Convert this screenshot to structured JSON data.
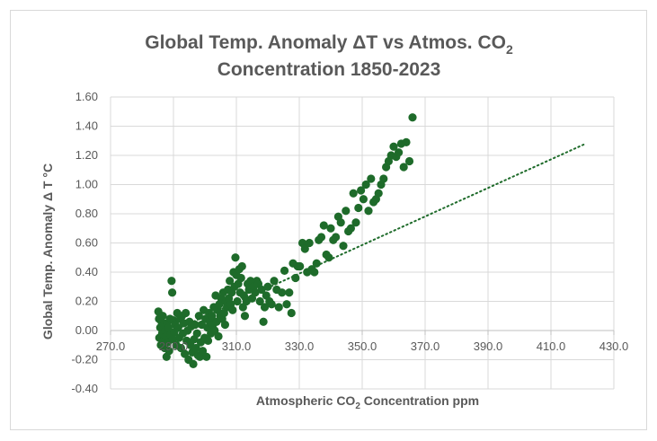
{
  "chart_data": {
    "type": "scatter",
    "title_line1": "Global Temp. Anomaly ΔT vs Atmos. CO",
    "title_line1_sub": "2",
    "title_line2": "Concentration 1850-2023",
    "xlabel_pre": "Atmospheric CO",
    "xlabel_sub": "2",
    "xlabel_post": " Concentration ppm",
    "ylabel": "Global Temp. Anomaly Δ T °C",
    "xlim": [
      270,
      430
    ],
    "ylim": [
      -0.4,
      1.6
    ],
    "x_ticks": [
      "270.0",
      "290.0",
      "310.0",
      "330.0",
      "350.0",
      "370.0",
      "390.0",
      "410.0",
      "430.0"
    ],
    "y_ticks": [
      "1.60",
      "1.40",
      "1.20",
      "1.00",
      "0.80",
      "0.60",
      "0.40",
      "0.20",
      "0.00",
      "-0.20",
      "-0.40"
    ],
    "grid": true,
    "marker_color": "#1e6b2a",
    "trendline": {
      "style": "dotted",
      "color": "#1e6b2a",
      "x": [
        286,
        421
      ],
      "y": [
        -0.04,
        1.28
      ]
    },
    "points": [
      [
        285.2,
        0.13
      ],
      [
        285.4,
        0.08
      ],
      [
        285.5,
        -0.05
      ],
      [
        285.8,
        0.02
      ],
      [
        286.0,
        -0.1
      ],
      [
        286.2,
        0.06
      ],
      [
        286.4,
        -0.02
      ],
      [
        286.6,
        0.1
      ],
      [
        286.8,
        -0.07
      ],
      [
        287.0,
        0.04
      ],
      [
        287.2,
        -0.12
      ],
      [
        287.4,
        0.0
      ],
      [
        287.6,
        -0.04
      ],
      [
        287.8,
        -0.18
      ],
      [
        288.0,
        0.05
      ],
      [
        288.2,
        -0.08
      ],
      [
        288.4,
        0.02
      ],
      [
        288.6,
        -0.14
      ],
      [
        288.9,
        0.08
      ],
      [
        289.1,
        -0.03
      ],
      [
        289.4,
        0.34
      ],
      [
        289.6,
        0.26
      ],
      [
        289.8,
        -0.06
      ],
      [
        290.0,
        0.07
      ],
      [
        290.3,
        -0.01
      ],
      [
        290.6,
        0.04
      ],
      [
        290.9,
        -0.1
      ],
      [
        291.2,
        0.12
      ],
      [
        291.5,
        0.02
      ],
      [
        291.8,
        -0.05
      ],
      [
        292.1,
        0.08
      ],
      [
        292.4,
        -0.12
      ],
      [
        292.7,
        0.1
      ],
      [
        293.0,
        -0.02
      ],
      [
        293.3,
        0.05
      ],
      [
        293.6,
        -0.16
      ],
      [
        293.9,
        0.12
      ],
      [
        294.2,
        -0.07
      ],
      [
        294.5,
        0.0
      ],
      [
        294.8,
        -0.2
      ],
      [
        295.1,
        0.06
      ],
      [
        295.4,
        -0.1
      ],
      [
        295.7,
        0.03
      ],
      [
        296.0,
        -0.15
      ],
      [
        296.3,
        -0.23
      ],
      [
        296.6,
        -0.06
      ],
      [
        296.9,
        0.04
      ],
      [
        297.2,
        -0.12
      ],
      [
        297.5,
        -0.02
      ],
      [
        297.8,
        -0.17
      ],
      [
        298.1,
        0.1
      ],
      [
        298.4,
        -0.18
      ],
      [
        298.7,
        -0.08
      ],
      [
        299.0,
        0.04
      ],
      [
        299.3,
        -0.14
      ],
      [
        299.6,
        0.14
      ],
      [
        299.9,
        -0.05
      ],
      [
        300.2,
        0.08
      ],
      [
        300.5,
        -0.18
      ],
      [
        300.8,
        0.02
      ],
      [
        301.0,
        -0.07
      ],
      [
        301.3,
        0.12
      ],
      [
        301.6,
        0.06
      ],
      [
        301.9,
        -0.02
      ],
      [
        302.2,
        0.1
      ],
      [
        302.5,
        0.04
      ],
      [
        302.8,
        0.16
      ],
      [
        303.1,
        0.0
      ],
      [
        303.4,
        0.24
      ],
      [
        303.7,
        0.06
      ],
      [
        304.0,
        0.14
      ],
      [
        304.3,
        -0.04
      ],
      [
        304.6,
        0.18
      ],
      [
        304.9,
        0.1
      ],
      [
        305.2,
        0.22
      ],
      [
        305.5,
        0.08
      ],
      [
        305.8,
        0.26
      ],
      [
        306.1,
        0.12
      ],
      [
        306.4,
        0.04
      ],
      [
        306.7,
        0.2
      ],
      [
        307.0,
        0.16
      ],
      [
        307.3,
        0.28
      ],
      [
        307.6,
        0.22
      ],
      [
        307.9,
        0.34
      ],
      [
        308.2,
        0.18
      ],
      [
        308.5,
        0.26
      ],
      [
        308.8,
        0.14
      ],
      [
        309.1,
        0.4
      ],
      [
        309.4,
        0.3
      ],
      [
        309.7,
        0.5
      ],
      [
        310.0,
        0.38
      ],
      [
        310.3,
        0.2
      ],
      [
        310.6,
        0.32
      ],
      [
        310.9,
        0.42
      ],
      [
        311.2,
        0.26
      ],
      [
        311.5,
        0.36
      ],
      [
        311.8,
        0.44
      ],
      [
        312.1,
        0.16
      ],
      [
        312.4,
        0.24
      ],
      [
        312.7,
        0.1
      ],
      [
        313.2,
        0.2
      ],
      [
        313.6,
        0.32
      ],
      [
        314.0,
        0.28
      ],
      [
        314.5,
        0.34
      ],
      [
        315.0,
        0.22
      ],
      [
        315.5,
        0.3
      ],
      [
        316.0,
        0.26
      ],
      [
        316.5,
        0.34
      ],
      [
        317.0,
        0.32
      ],
      [
        317.5,
        0.2
      ],
      [
        318.0,
        0.28
      ],
      [
        318.6,
        0.06
      ],
      [
        319.0,
        0.16
      ],
      [
        319.5,
        0.24
      ],
      [
        320.0,
        0.3
      ],
      [
        320.5,
        0.2
      ],
      [
        321.2,
        0.18
      ],
      [
        322.0,
        0.34
      ],
      [
        322.8,
        0.28
      ],
      [
        323.5,
        0.16
      ],
      [
        324.5,
        0.26
      ],
      [
        325.3,
        0.41
      ],
      [
        326.0,
        0.18
      ],
      [
        326.8,
        0.26
      ],
      [
        327.5,
        0.12
      ],
      [
        328.0,
        0.46
      ],
      [
        328.8,
        0.36
      ],
      [
        329.5,
        0.44
      ],
      [
        330.2,
        0.44
      ],
      [
        331.0,
        0.6
      ],
      [
        331.8,
        0.56
      ],
      [
        332.5,
        0.4
      ],
      [
        333.2,
        0.6
      ],
      [
        334.0,
        0.42
      ],
      [
        334.8,
        0.4
      ],
      [
        335.5,
        0.46
      ],
      [
        336.2,
        0.62
      ],
      [
        337.0,
        0.64
      ],
      [
        337.8,
        0.72
      ],
      [
        338.6,
        0.52
      ],
      [
        339.4,
        0.5
      ],
      [
        340.0,
        0.7
      ],
      [
        340.8,
        0.62
      ],
      [
        341.6,
        0.64
      ],
      [
        342.4,
        0.78
      ],
      [
        343.2,
        0.74
      ],
      [
        344.0,
        0.58
      ],
      [
        344.8,
        0.82
      ],
      [
        345.6,
        0.68
      ],
      [
        346.4,
        0.7
      ],
      [
        347.2,
        0.94
      ],
      [
        348.0,
        0.74
      ],
      [
        348.8,
        0.84
      ],
      [
        349.6,
        0.96
      ],
      [
        350.4,
        0.9
      ],
      [
        351.2,
        1.0
      ],
      [
        352.0,
        0.82
      ],
      [
        352.8,
        1.04
      ],
      [
        353.6,
        0.88
      ],
      [
        354.4,
        0.9
      ],
      [
        355.2,
        0.94
      ],
      [
        356.0,
        1.0
      ],
      [
        356.8,
        1.04
      ],
      [
        357.6,
        1.12
      ],
      [
        358.4,
        1.16
      ],
      [
        359.2,
        1.2
      ],
      [
        360.0,
        1.26
      ],
      [
        360.8,
        1.19
      ],
      [
        361.6,
        1.22
      ],
      [
        362.4,
        1.28
      ],
      [
        363.2,
        1.12
      ],
      [
        364.0,
        1.29
      ],
      [
        365.0,
        1.16
      ],
      [
        366.0,
        1.46
      ]
    ]
  }
}
